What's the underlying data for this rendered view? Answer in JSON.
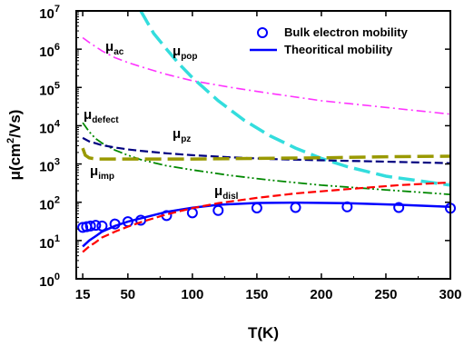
{
  "chart_data": {
    "type": "line",
    "title": "",
    "xlabel": "T(K)",
    "ylabel": {
      "base": "μ(cm",
      "sup": "2",
      "rest": "/Vs)"
    },
    "xlim": [
      10,
      300
    ],
    "ylim": [
      1,
      10000000
    ],
    "yscale": "log",
    "x_ticks": [
      15,
      50,
      100,
      150,
      200,
      250,
      300
    ],
    "y_ticks": [
      {
        "value": 1,
        "base": "10",
        "exp": "0"
      },
      {
        "value": 10,
        "base": "10",
        "exp": "1"
      },
      {
        "value": 100,
        "base": "10",
        "exp": "2"
      },
      {
        "value": 1000,
        "base": "10",
        "exp": "3"
      },
      {
        "value": 10000,
        "base": "10",
        "exp": "4"
      },
      {
        "value": 100000,
        "base": "10",
        "exp": "5"
      },
      {
        "value": 1000000,
        "base": "10",
        "exp": "6"
      },
      {
        "value": 10000000,
        "base": "10",
        "exp": "7"
      }
    ],
    "legend": {
      "position": "top-right",
      "entries": [
        "Bulk electron mobility",
        "Theoritical mobility"
      ]
    },
    "series": [
      {
        "name": "Bulk electron mobility",
        "kind": "scatter",
        "color": "#0000ff",
        "x": [
          15,
          18,
          21,
          25,
          30,
          40,
          50,
          60,
          80,
          100,
          120,
          150,
          180,
          220,
          260,
          300
        ],
        "y": [
          22,
          23,
          24,
          25,
          24,
          27,
          31,
          34,
          45,
          53,
          61,
          71,
          73,
          76,
          73,
          70
        ]
      },
      {
        "name": "Theoritical mobility",
        "kind": "line",
        "color": "#0000ff",
        "style": "solid",
        "x": [
          15,
          20,
          25,
          30,
          40,
          50,
          60,
          80,
          100,
          120,
          150,
          180,
          220,
          260,
          300
        ],
        "y": [
          7,
          10,
          13,
          17,
          24,
          31,
          38,
          56,
          72,
          86,
          96,
          98,
          94,
          86,
          76
        ]
      },
      {
        "label": {
          "base": "μ",
          "sub": "ac"
        },
        "kind": "line",
        "color": "#ff33ff",
        "style": "dashdot",
        "x": [
          15,
          20,
          30,
          40,
          50,
          60,
          80,
          100,
          130,
          160,
          200,
          250,
          300
        ],
        "y": [
          2000000,
          1500000,
          900000,
          600000,
          450000,
          350000,
          220000,
          150000,
          100000,
          70000,
          45000,
          30000,
          20000
        ]
      },
      {
        "label": {
          "base": "μ",
          "sub": "pop"
        },
        "kind": "line",
        "color": "#33dddd",
        "style": "longdash",
        "x": [
          60,
          70,
          80,
          90,
          100,
          120,
          140,
          160,
          180,
          200,
          220,
          250,
          300
        ],
        "y": [
          10000000,
          2600000,
          1000000,
          400000,
          180000,
          45000,
          14000,
          5500,
          2600,
          1400,
          850,
          480,
          280
        ]
      },
      {
        "label": {
          "base": "μ",
          "sub": "defect"
        },
        "kind": "line",
        "color": "#008800",
        "style": "dashdotdot",
        "x": [
          15,
          20,
          25,
          30,
          40,
          50,
          60,
          80,
          100,
          130,
          160,
          200,
          250,
          300
        ],
        "y": [
          12000,
          7000,
          4600,
          3500,
          2300,
          1700,
          1300,
          900,
          700,
          500,
          380,
          280,
          210,
          160
        ]
      },
      {
        "label": {
          "base": "μ",
          "sub": "pz"
        },
        "kind": "line",
        "color": "#000080",
        "style": "dashed",
        "x": [
          15,
          20,
          30,
          40,
          50,
          60,
          80,
          100,
          130,
          160,
          200,
          250,
          300
        ],
        "y": [
          4800,
          3900,
          3100,
          2700,
          2400,
          2200,
          1900,
          1700,
          1500,
          1350,
          1250,
          1150,
          1050
        ]
      },
      {
        "label": {
          "base": "μ",
          "sub": "imp"
        },
        "kind": "line",
        "color": "#999900",
        "style": "longdash",
        "x": [
          15,
          17,
          20,
          25,
          30,
          40,
          50,
          70,
          100,
          150,
          200,
          250,
          300
        ],
        "y": [
          2600,
          1700,
          1450,
          1350,
          1350,
          1350,
          1350,
          1350,
          1350,
          1400,
          1450,
          1550,
          1600
        ]
      },
      {
        "label": {
          "base": "μ",
          "sub": "disl"
        },
        "kind": "line",
        "color": "#ff0000",
        "style": "dashed",
        "x": [
          15,
          20,
          25,
          30,
          40,
          50,
          60,
          80,
          100,
          120,
          150,
          180,
          220,
          260,
          300
        ],
        "y": [
          5,
          7,
          9,
          12,
          17,
          23,
          30,
          48,
          70,
          95,
          130,
          170,
          220,
          280,
          330
        ]
      }
    ]
  }
}
